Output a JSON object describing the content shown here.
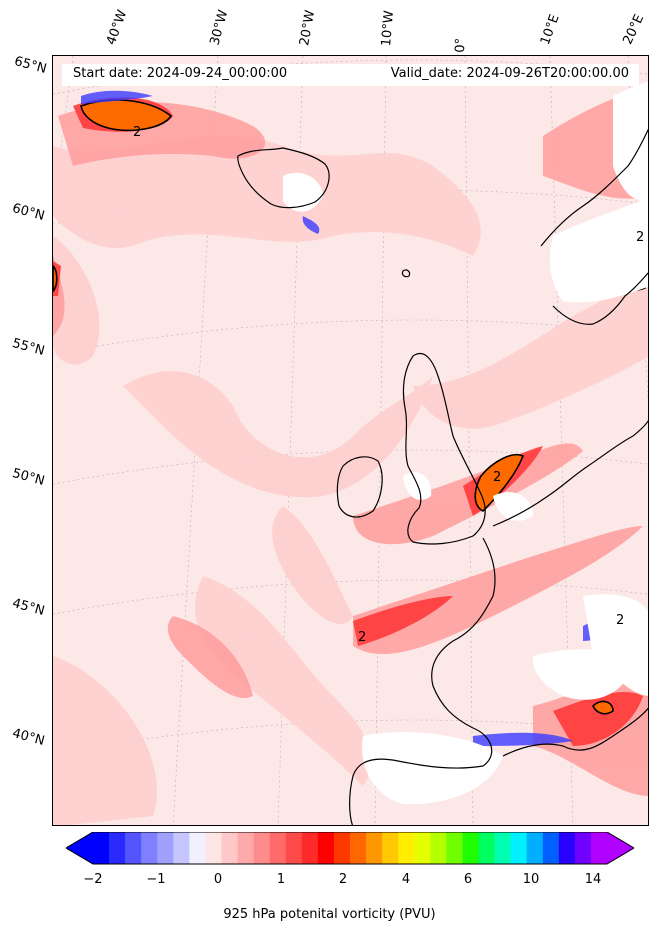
{
  "map": {
    "start_date": "Start date: 2024-09-24_00:00:00",
    "valid_date": "Valid_date: 2024-09-26T20:00:00.00",
    "longitude_labels": [
      "40°W",
      "30°W",
      "20°W",
      "10°W",
      "0°",
      "10°E",
      "20°E"
    ],
    "latitude_labels": [
      "65°N",
      "60°N",
      "55°N",
      "50°N",
      "45°N",
      "40°N"
    ],
    "contour_labels": [
      "2",
      "2",
      "2",
      "2",
      "2"
    ]
  },
  "colorbar": {
    "title": "925 hPa potenital vorticity (PVU)",
    "tick_labels": [
      "−2",
      "−1",
      "0",
      "1",
      "2",
      "4",
      "6",
      "10",
      "14"
    ],
    "colors": [
      "#0000ff",
      "#2a2aff",
      "#5555ff",
      "#7f7fff",
      "#a0a0ff",
      "#c6c6ff",
      "#f0f0ff",
      "#ffe6e6",
      "#ffc8c8",
      "#ffaaaa",
      "#ff8c8c",
      "#ff6a6a",
      "#ff4a4a",
      "#ff2a2a",
      "#ff0000",
      "#ff3800",
      "#ff6800",
      "#ff9800",
      "#ffc800",
      "#ffee00",
      "#e6ff00",
      "#b4ff00",
      "#70ff00",
      "#20ff00",
      "#00ff60",
      "#00ffb0",
      "#00f0ff",
      "#00b0ff",
      "#0060ff",
      "#2a00ff",
      "#7000ff",
      "#b000ff"
    ]
  }
}
